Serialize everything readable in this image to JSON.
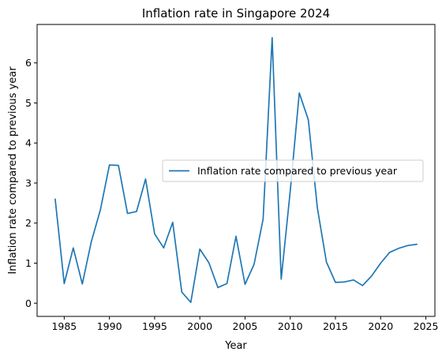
{
  "chart_data": {
    "type": "line",
    "title": "Inflation rate in Singapore 2024",
    "xlabel": "Year",
    "ylabel": "Inflation rate compared to previous year",
    "xlim": [
      1982.0,
      2026.0
    ],
    "ylim": [
      -0.33,
      6.96
    ],
    "x_ticks": [
      1985,
      1990,
      1995,
      2000,
      2005,
      2010,
      2015,
      2020,
      2025
    ],
    "y_ticks": [
      0,
      1,
      2,
      3,
      4,
      5,
      6
    ],
    "grid": false,
    "legend_position": "center-right",
    "series": [
      {
        "name": "Inflation rate compared to previous year",
        "color": "#1f77b4",
        "x": [
          1984,
          1985,
          1986,
          1987,
          1988,
          1989,
          1990,
          1991,
          1992,
          1993,
          1994,
          1995,
          1996,
          1997,
          1998,
          1999,
          2000,
          2001,
          2002,
          2003,
          2004,
          2005,
          2006,
          2007,
          2008,
          2009,
          2010,
          2011,
          2012,
          2013,
          2014,
          2015,
          2016,
          2017,
          2018,
          2019,
          2020,
          2021,
          2022,
          2023,
          2024
        ],
        "y": [
          2.6,
          0.49,
          1.38,
          0.48,
          1.54,
          2.33,
          3.45,
          3.44,
          2.24,
          2.29,
          3.1,
          1.73,
          1.38,
          2.02,
          0.28,
          0.02,
          1.35,
          1.01,
          0.39,
          0.49,
          1.67,
          0.47,
          0.97,
          2.1,
          6.63,
          0.6,
          2.8,
          5.25,
          4.58,
          2.38,
          1.03,
          0.52,
          0.53,
          0.58,
          0.44,
          0.68,
          1.0,
          1.27,
          1.37,
          1.44,
          1.47
        ]
      }
    ]
  }
}
